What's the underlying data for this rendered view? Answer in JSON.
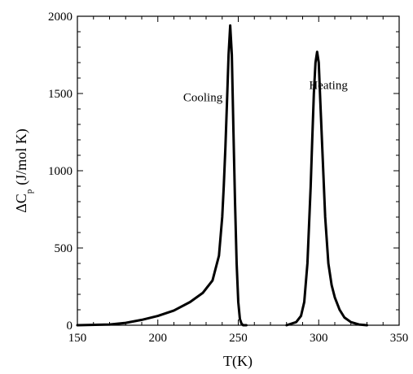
{
  "chart_data": {
    "type": "line",
    "xlabel": "T(K)",
    "ylabel_main": "ΔC",
    "ylabel_sub": "p",
    "ylabel_rest": "(J/mol K)",
    "xlim": [
      150,
      350
    ],
    "ylim": [
      0,
      2000
    ],
    "xticks": [
      150,
      200,
      250,
      300,
      350
    ],
    "yticks": [
      0,
      500,
      1000,
      1500,
      2000
    ],
    "grid": false,
    "legend": "none",
    "line_color": "#000000",
    "annotations": [
      {
        "text": "Cooling",
        "x": 228,
        "y": 1450
      },
      {
        "text": "Heating",
        "x": 306,
        "y": 1530
      }
    ],
    "series": [
      {
        "label": "Cooling",
        "x": [
          150,
          170,
          180,
          190,
          200,
          210,
          220,
          228,
          234,
          238,
          240,
          241,
          242,
          243,
          244,
          245,
          246,
          247,
          248,
          249,
          250,
          251,
          252,
          253,
          255
        ],
        "y": [
          0,
          5,
          15,
          35,
          60,
          95,
          150,
          210,
          290,
          450,
          700,
          900,
          1150,
          1450,
          1750,
          1940,
          1750,
          1250,
          800,
          400,
          150,
          40,
          10,
          0,
          0
        ]
      },
      {
        "label": "Heating",
        "x": [
          280,
          286,
          289,
          291,
          293,
          295,
          296,
          297,
          298,
          299,
          300,
          301,
          302,
          303,
          304,
          306,
          308,
          310,
          313,
          316,
          320,
          325,
          330
        ],
        "y": [
          0,
          20,
          60,
          150,
          400,
          900,
          1200,
          1500,
          1700,
          1770,
          1700,
          1450,
          1200,
          950,
          700,
          400,
          260,
          180,
          100,
          50,
          20,
          5,
          0
        ]
      }
    ]
  }
}
